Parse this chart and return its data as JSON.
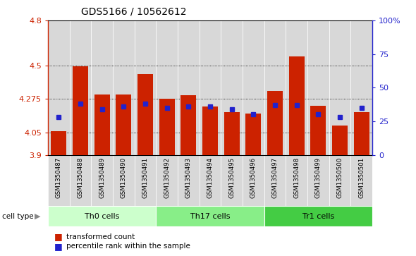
{
  "title": "GDS5166 / 10562612",
  "samples": [
    "GSM1350487",
    "GSM1350488",
    "GSM1350489",
    "GSM1350490",
    "GSM1350491",
    "GSM1350492",
    "GSM1350493",
    "GSM1350494",
    "GSM1350495",
    "GSM1350496",
    "GSM1350497",
    "GSM1350498",
    "GSM1350499",
    "GSM1350500",
    "GSM1350501"
  ],
  "transformed_count": [
    4.06,
    4.495,
    4.305,
    4.305,
    4.44,
    4.275,
    4.3,
    4.225,
    4.185,
    4.175,
    4.33,
    4.56,
    4.23,
    4.095,
    4.185
  ],
  "percentile_rank": [
    28,
    38,
    34,
    36,
    38,
    35,
    36,
    36,
    34,
    30,
    37,
    37,
    30,
    28,
    35
  ],
  "cell_groups": [
    {
      "label": "Th0 cells",
      "start": 0,
      "end": 5,
      "color": "#ccffcc"
    },
    {
      "label": "Th17 cells",
      "start": 5,
      "end": 10,
      "color": "#99ee99"
    },
    {
      "label": "Tr1 cells",
      "start": 10,
      "end": 15,
      "color": "#44cc44"
    }
  ],
  "ymin": 3.9,
  "ymax": 4.8,
  "yticks_left": [
    3.9,
    4.05,
    4.275,
    4.5,
    4.8
  ],
  "yticks_right_vals": [
    0,
    25,
    50,
    75,
    100
  ],
  "yticks_right_labels": [
    "0",
    "25",
    "50",
    "75",
    "100%"
  ],
  "bar_color": "#cc2200",
  "marker_color": "#2222cc",
  "col_bg_even": "#d8d8d8",
  "col_bg_odd": "#e8e8e8",
  "bar_width": 0.72,
  "base": 3.9
}
